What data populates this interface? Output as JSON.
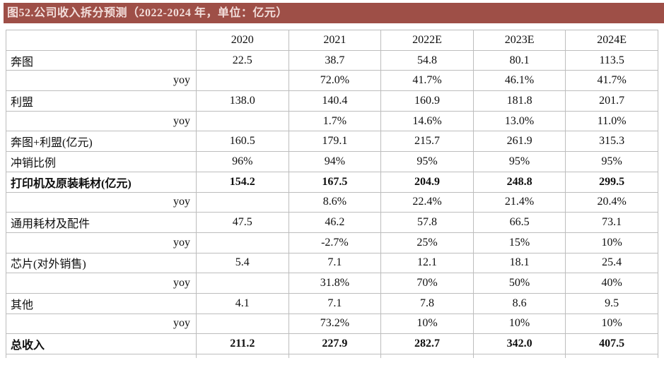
{
  "title": "图52.公司收入拆分预测（2022-2024 年，单位：亿元）",
  "colors": {
    "title_bar_bg": "#9e4f47",
    "title_text": "#f2dedb",
    "table_border": "#bdbdbd",
    "body_text": "#0f0f0f"
  },
  "table": {
    "columns": [
      "",
      "2020",
      "2021",
      "2022E",
      "2023E",
      "2024E"
    ],
    "rows": [
      {
        "label": "奔图",
        "type": "item",
        "bold": false,
        "values": [
          "22.5",
          "38.7",
          "54.8",
          "80.1",
          "113.5"
        ]
      },
      {
        "label": "yoy",
        "type": "yoy",
        "bold": false,
        "values": [
          "",
          "72.0%",
          "41.7%",
          "46.1%",
          "41.7%"
        ]
      },
      {
        "label": "利盟",
        "type": "item",
        "bold": false,
        "values": [
          "138.0",
          "140.4",
          "160.9",
          "181.8",
          "201.7"
        ]
      },
      {
        "label": "yoy",
        "type": "yoy",
        "bold": false,
        "values": [
          "",
          "1.7%",
          "14.6%",
          "13.0%",
          "11.0%"
        ]
      },
      {
        "label": "奔图+利盟(亿元)",
        "type": "item",
        "bold": false,
        "values": [
          "160.5",
          "179.1",
          "215.7",
          "261.9",
          "315.3"
        ]
      },
      {
        "label": "冲销比例",
        "type": "item",
        "bold": false,
        "values": [
          "96%",
          "94%",
          "95%",
          "95%",
          "95%"
        ]
      },
      {
        "label": "打印机及原装耗材(亿元)",
        "type": "item",
        "bold": true,
        "values": [
          "154.2",
          "167.5",
          "204.9",
          "248.8",
          "299.5"
        ]
      },
      {
        "label": "yoy",
        "type": "yoy",
        "bold": false,
        "values": [
          "",
          "8.6%",
          "22.4%",
          "21.4%",
          "20.4%"
        ]
      },
      {
        "label": "通用耗材及配件",
        "type": "item",
        "bold": false,
        "values": [
          "47.5",
          "46.2",
          "57.8",
          "66.5",
          "73.1"
        ]
      },
      {
        "label": "yoy",
        "type": "yoy",
        "bold": false,
        "values": [
          "",
          "-2.7%",
          "25%",
          "15%",
          "10%"
        ]
      },
      {
        "label": "芯片(对外销售)",
        "type": "item",
        "bold": false,
        "values": [
          "5.4",
          "7.1",
          "12.1",
          "18.1",
          "25.4"
        ]
      },
      {
        "label": "yoy",
        "type": "yoy",
        "bold": false,
        "values": [
          "",
          "31.8%",
          "70%",
          "50%",
          "40%"
        ]
      },
      {
        "label": "其他",
        "type": "item",
        "bold": false,
        "values": [
          "4.1",
          "7.1",
          "7.8",
          "8.6",
          "9.5"
        ]
      },
      {
        "label": "yoy",
        "type": "yoy",
        "bold": false,
        "values": [
          "",
          "73.2%",
          "10%",
          "10%",
          "10%"
        ]
      },
      {
        "label": "总收入",
        "type": "item",
        "bold": true,
        "values": [
          "211.2",
          "227.9",
          "282.7",
          "342.0",
          "407.5"
        ]
      }
    ]
  }
}
